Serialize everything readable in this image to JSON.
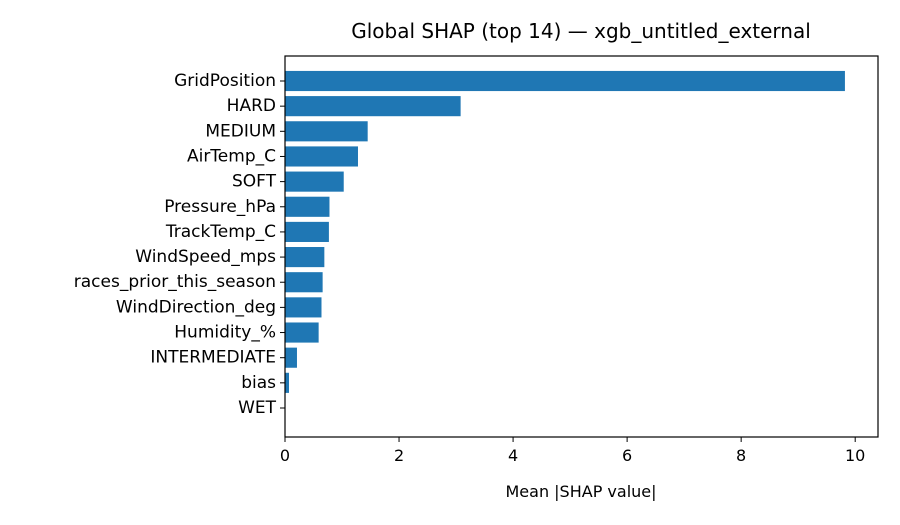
{
  "chart_data": {
    "type": "bar",
    "orientation": "horizontal",
    "title": "Global SHAP (top 14) — xgb_untitled_external",
    "xlabel": "Mean |SHAP value|",
    "ylabel": "",
    "xlim": [
      0,
      10.4
    ],
    "xticks": [
      "0",
      "2",
      "4",
      "6",
      "8",
      "10"
    ],
    "categories": [
      "GridPosition",
      "HARD",
      "MEDIUM",
      "AirTemp_C",
      "SOFT",
      "Pressure_hPa",
      "TrackTemp_C",
      "WindSpeed_mps",
      "races_prior_this_season",
      "WindDirection_deg",
      "Humidity_%",
      "INTERMEDIATE",
      "bias",
      "WET"
    ],
    "values": [
      9.82,
      3.08,
      1.45,
      1.28,
      1.03,
      0.78,
      0.77,
      0.69,
      0.66,
      0.64,
      0.59,
      0.21,
      0.07,
      0.0
    ],
    "grid": false,
    "legend": false,
    "colors": {
      "bar": "#1f77b4",
      "axis": "#000000",
      "background": "#ffffff"
    }
  }
}
